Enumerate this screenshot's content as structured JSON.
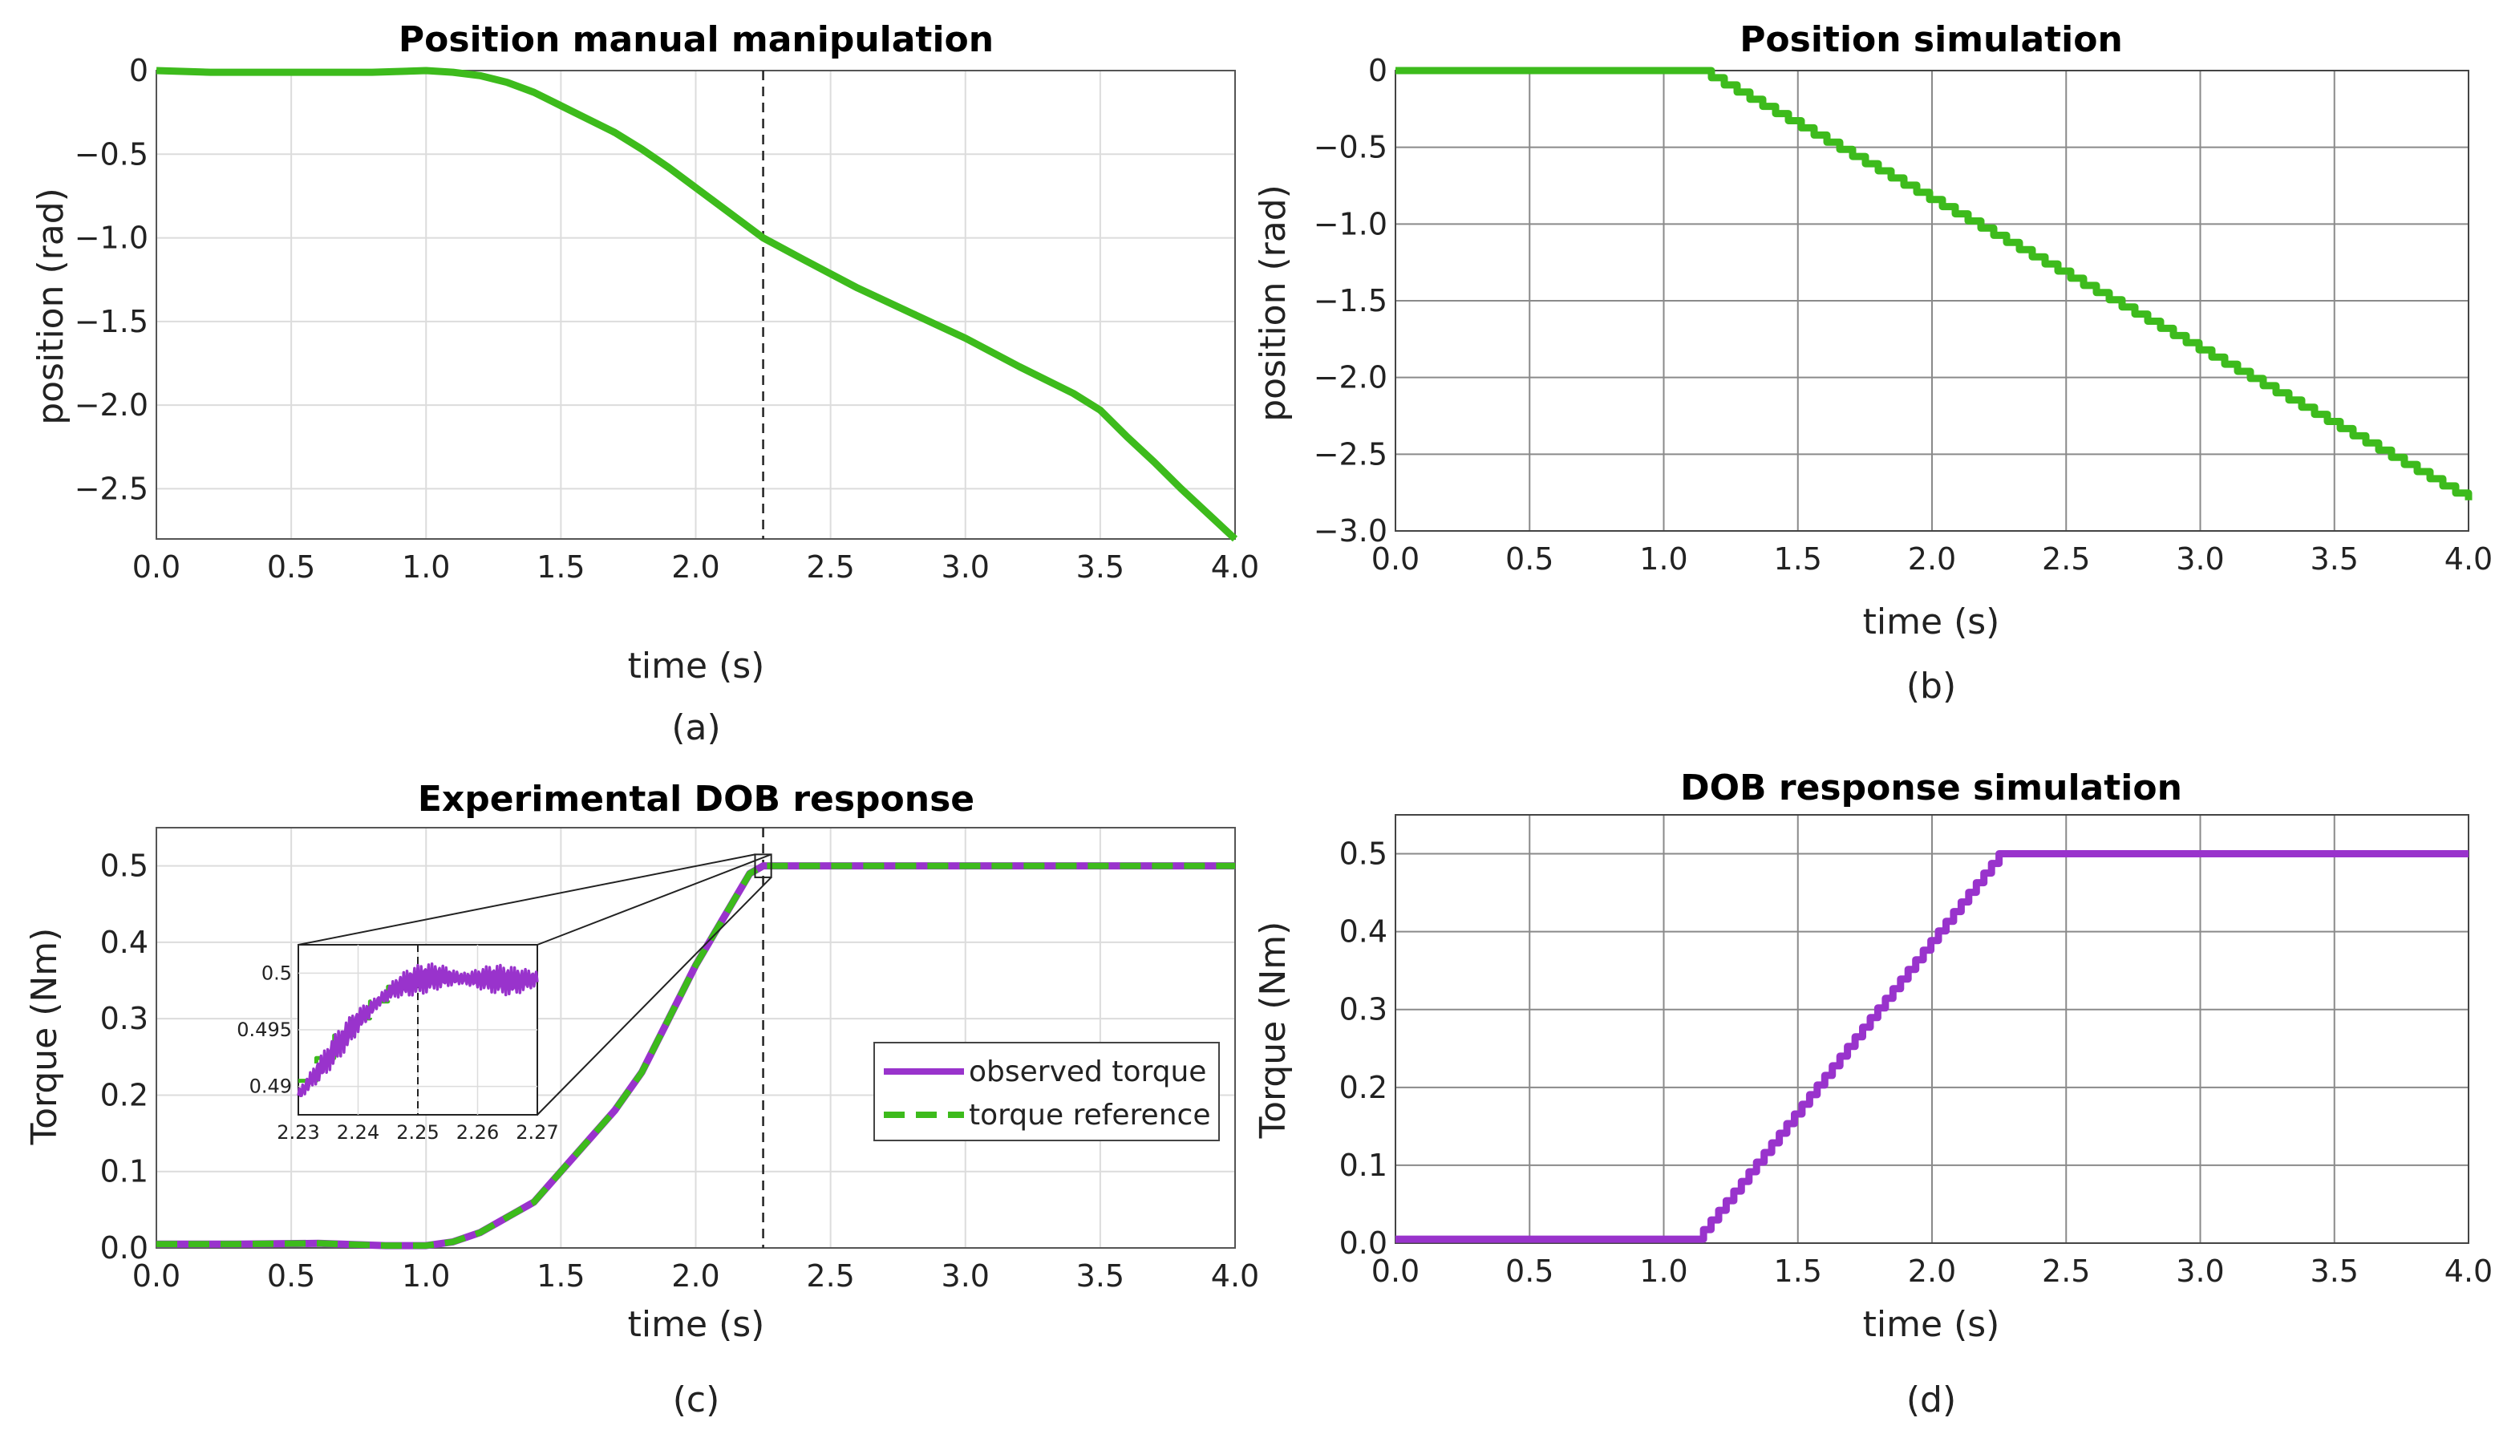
{
  "colors": {
    "green": "#3dbb1c",
    "purple": "#9933cc",
    "grid_light": "#dcdcdc",
    "grid_dark": "#8a8a8a",
    "axis": "#555555"
  },
  "chart_data": [
    {
      "id": "a",
      "type": "line",
      "title": "Position manual manipulation",
      "xlabel": "time (s)",
      "ylabel": "position (rad)",
      "caption": "(a)",
      "xlim": [
        0,
        4
      ],
      "ylim": [
        -2.8,
        0
      ],
      "xticks": [
        0,
        0.5,
        1,
        1.5,
        2,
        2.5,
        3,
        3.5,
        4
      ],
      "xtick_labels": [
        "0.0",
        "0.5",
        "1.0",
        "1.5",
        "2.0",
        "2.5",
        "3.0",
        "3.5",
        "4.0"
      ],
      "yticks": [
        0,
        -0.5,
        -1,
        -1.5,
        -2,
        -2.5
      ],
      "ytick_labels": [
        "0",
        "−0.5",
        "−1.0",
        "−1.5",
        "−2.0",
        "−2.5"
      ],
      "grid": true,
      "vline": 2.25,
      "series": [
        {
          "name": "position",
          "color": "#3dbb1c",
          "x": [
            0,
            0.2,
            0.5,
            0.8,
            1.0,
            1.1,
            1.2,
            1.3,
            1.4,
            1.5,
            1.6,
            1.7,
            1.8,
            1.9,
            2.0,
            2.1,
            2.2,
            2.25,
            2.4,
            2.6,
            2.8,
            3.0,
            3.2,
            3.4,
            3.5,
            3.6,
            3.7,
            3.8,
            3.9,
            4.0
          ],
          "y": [
            0.0,
            -0.01,
            -0.01,
            -0.01,
            0.0,
            -0.01,
            -0.03,
            -0.07,
            -0.13,
            -0.21,
            -0.29,
            -0.37,
            -0.47,
            -0.58,
            -0.7,
            -0.82,
            -0.94,
            -1.0,
            -1.13,
            -1.3,
            -1.45,
            -1.6,
            -1.77,
            -1.93,
            -2.03,
            -2.19,
            -2.34,
            -2.5,
            -2.65,
            -2.8
          ]
        }
      ]
    },
    {
      "id": "b",
      "type": "line",
      "title": "Position simulation",
      "xlabel": "time (s)",
      "ylabel": "position (rad)",
      "caption": "(b)",
      "xlim": [
        0,
        4
      ],
      "ylim": [
        -3.0,
        0
      ],
      "xticks": [
        0,
        0.5,
        1,
        1.5,
        2,
        2.5,
        3,
        3.5,
        4
      ],
      "xtick_labels": [
        "0.0",
        "0.5",
        "1.0",
        "1.5",
        "2.0",
        "2.5",
        "3.0",
        "3.5",
        "4.0"
      ],
      "yticks": [
        0,
        -0.5,
        -1,
        -1.5,
        -2,
        -2.5,
        -3
      ],
      "ytick_labels": [
        "0",
        "−0.5",
        "−1.0",
        "−1.5",
        "−2.0",
        "−2.5",
        "−3.0"
      ],
      "grid": true,
      "series": [
        {
          "name": "position",
          "color": "#3dbb1c",
          "x": [
            0,
            1.13,
            4.0
          ],
          "y": [
            0,
            0,
            -2.8
          ]
        }
      ]
    },
    {
      "id": "c",
      "type": "line",
      "title": "Experimental DOB response",
      "xlabel": "time (s)",
      "ylabel": "Torque (Nm)",
      "caption": "(c)",
      "xlim": [
        0,
        4
      ],
      "ylim": [
        0,
        0.55
      ],
      "xticks": [
        0,
        0.5,
        1,
        1.5,
        2,
        2.5,
        3,
        3.5,
        4
      ],
      "xtick_labels": [
        "0.0",
        "0.5",
        "1.0",
        "1.5",
        "2.0",
        "2.5",
        "3.0",
        "3.5",
        "4.0"
      ],
      "yticks": [
        0,
        0.1,
        0.2,
        0.3,
        0.4,
        0.5
      ],
      "ytick_labels": [
        "0.0",
        "0.1",
        "0.2",
        "0.3",
        "0.4",
        "0.5"
      ],
      "grid": true,
      "vline": 2.25,
      "legend": {
        "position": "lower-right",
        "entries": [
          "observed torque",
          "torque reference"
        ]
      },
      "series": [
        {
          "name": "observed torque",
          "color": "#9933cc",
          "style": "solid",
          "x": [
            0,
            0.3,
            0.6,
            0.85,
            1.0,
            1.1,
            1.2,
            1.3,
            1.4,
            1.5,
            1.6,
            1.7,
            1.8,
            1.9,
            2.0,
            2.1,
            2.2,
            2.25,
            2.5,
            3.0,
            3.5,
            4.0
          ],
          "y": [
            0.005,
            0.005,
            0.006,
            0.003,
            0.003,
            0.008,
            0.02,
            0.04,
            0.06,
            0.1,
            0.14,
            0.18,
            0.23,
            0.3,
            0.37,
            0.43,
            0.49,
            0.5,
            0.5,
            0.5,
            0.5,
            0.5
          ]
        },
        {
          "name": "torque reference",
          "color": "#3dbb1c",
          "style": "dashed",
          "x": [
            0,
            0.3,
            0.6,
            0.85,
            1.0,
            1.1,
            1.2,
            1.3,
            1.4,
            1.5,
            1.6,
            1.7,
            1.8,
            1.9,
            2.0,
            2.1,
            2.2,
            2.25,
            2.5,
            3.0,
            3.5,
            4.0
          ],
          "y": [
            0.005,
            0.005,
            0.006,
            0.003,
            0.003,
            0.008,
            0.02,
            0.04,
            0.06,
            0.1,
            0.14,
            0.18,
            0.23,
            0.3,
            0.37,
            0.43,
            0.49,
            0.5,
            0.5,
            0.5,
            0.5,
            0.5
          ]
        }
      ],
      "inset": {
        "xlim": [
          2.23,
          2.27
        ],
        "ylim": [
          0.4875,
          0.5025
        ],
        "xticks": [
          2.23,
          2.24,
          2.25,
          2.26,
          2.27
        ],
        "xtick_labels": [
          "2.23",
          "2.24",
          "2.25",
          "2.26",
          "2.27"
        ],
        "yticks": [
          0.49,
          0.495,
          0.5
        ],
        "ytick_labels": [
          "0.49",
          "0.495",
          "0.5"
        ],
        "vline": 2.25,
        "zoom_box": {
          "x": [
            2.22,
            2.28
          ],
          "y": [
            0.485,
            0.515
          ]
        },
        "series": [
          {
            "name": "torque reference",
            "color": "#3dbb1c",
            "style": "dashed",
            "x": [
              2.23,
              2.233,
              2.236,
              2.239,
              2.242,
              2.245,
              2.248,
              2.25,
              2.27
            ],
            "y": [
              0.4905,
              0.4925,
              0.4945,
              0.496,
              0.4975,
              0.4988,
              0.4995,
              0.4995,
              0.4995
            ]
          },
          {
            "name": "observed torque",
            "color": "#9933cc",
            "style": "solid",
            "x": [
              2.23,
              2.232,
              2.234,
              2.236,
              2.238,
              2.24,
              2.242,
              2.244,
              2.246,
              2.248,
              2.25,
              2.252,
              2.254,
              2.256,
              2.258,
              2.26,
              2.262,
              2.264,
              2.266,
              2.268,
              2.27
            ],
            "y": [
              0.4892,
              0.4905,
              0.4918,
              0.4932,
              0.4945,
              0.4958,
              0.4968,
              0.4978,
              0.4986,
              0.4991,
              0.4994,
              0.4996,
              0.4997,
              0.4996,
              0.4995,
              0.4995,
              0.4995,
              0.4994,
              0.4993,
              0.4994,
              0.4995
            ]
          }
        ]
      }
    },
    {
      "id": "d",
      "type": "line",
      "title": "DOB response simulation",
      "xlabel": "time (s)",
      "ylabel": "Torque (Nm)",
      "caption": "(d)",
      "xlim": [
        0,
        4
      ],
      "ylim": [
        0,
        0.55
      ],
      "xticks": [
        0,
        0.5,
        1,
        1.5,
        2,
        2.5,
        3,
        3.5,
        4
      ],
      "xtick_labels": [
        "0.0",
        "0.5",
        "1.0",
        "1.5",
        "2.0",
        "2.5",
        "3.0",
        "3.5",
        "4.0"
      ],
      "yticks": [
        0,
        0.1,
        0.2,
        0.3,
        0.4,
        0.5
      ],
      "ytick_labels": [
        "0.0",
        "0.1",
        "0.2",
        "0.3",
        "0.4",
        "0.5"
      ],
      "grid": true,
      "series": [
        {
          "name": "torque",
          "color": "#9933cc",
          "x": [
            0,
            1.12,
            2.25,
            4.0
          ],
          "y": [
            0.005,
            0.005,
            0.5,
            0.5
          ]
        }
      ]
    }
  ]
}
